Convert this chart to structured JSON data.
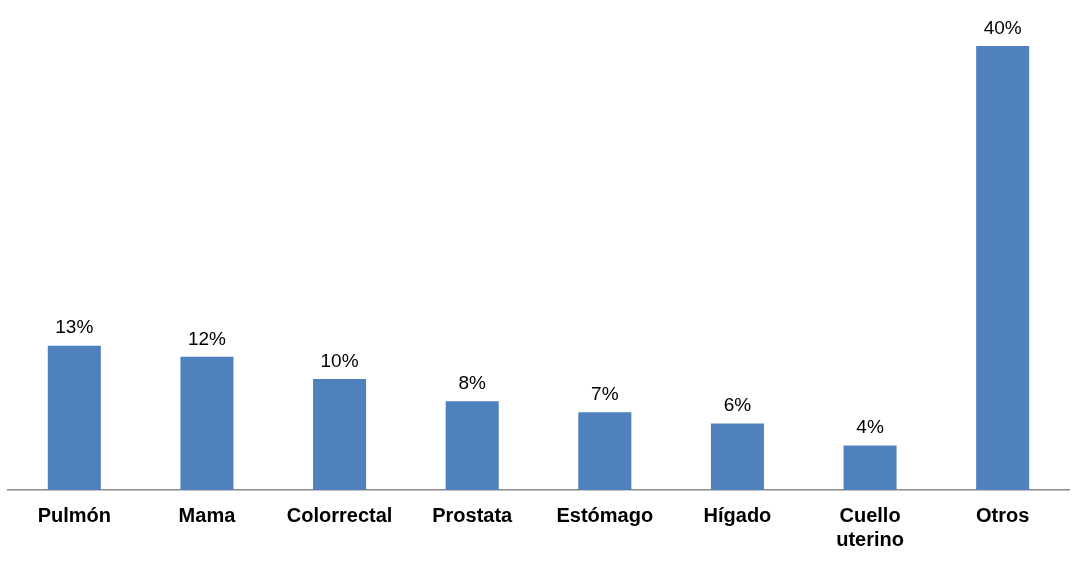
{
  "chart_data": {
    "type": "bar",
    "categories": [
      "Pulmón",
      "Mama",
      "Colorrectal",
      "Prostata",
      "Estómago",
      "Hígado",
      "Cuello uterino",
      "Otros"
    ],
    "values": [
      13,
      12,
      10,
      8,
      7,
      6,
      4,
      40
    ],
    "value_labels": [
      "13%",
      "12%",
      "10%",
      "8%",
      "7%",
      "6%",
      "4%",
      "40%"
    ],
    "color": "#4f81bd",
    "grid": false,
    "legend": false
  }
}
